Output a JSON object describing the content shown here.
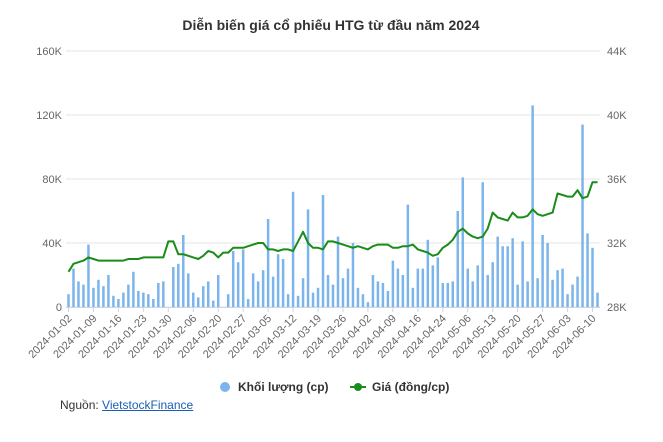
{
  "chart_data": {
    "type": "bar+line",
    "title": "Diễn biến giá cổ phiếu HTG từ đầu năm 2024",
    "colors": {
      "volume": "#7cb5ec",
      "price": "#1a8c1a",
      "grid": "#e6e6e6"
    },
    "y_left": {
      "ylim": [
        0,
        160000
      ],
      "ticks": [
        0,
        40000,
        80000,
        120000,
        160000
      ],
      "tick_labels": [
        "0",
        "40K",
        "80K",
        "120K",
        "160K"
      ]
    },
    "y_right": {
      "ylim": [
        28000,
        44000
      ],
      "ticks": [
        28000,
        32000,
        36000,
        40000,
        44000
      ],
      "tick_labels": [
        "28K",
        "32K",
        "36K",
        "40K",
        "44K"
      ]
    },
    "x_tick_labels": [
      "2024-01-02",
      "2024-01-09",
      "2024-01-16",
      "2024-01-23",
      "2024-01-30",
      "2024-02-06",
      "2024-02-20",
      "2024-02-27",
      "2024-03-05",
      "2024-03-12",
      "2024-03-19",
      "2024-03-26",
      "2024-04-02",
      "2024-04-09",
      "2024-04-16",
      "2024-04-24",
      "2024-05-06",
      "2024-05-13",
      "2024-05-20",
      "2024-05-27",
      "2024-06-03",
      "2024-06-10"
    ],
    "x_tick_label_every": 5,
    "legend_position": "bottom",
    "series": [
      {
        "name": "Khối lượng (cp)",
        "type": "bar",
        "values": [
          8000,
          24000,
          16000,
          14000,
          39000,
          12000,
          17000,
          13000,
          20000,
          7000,
          5000,
          9000,
          14000,
          22000,
          10000,
          9000,
          8000,
          5000,
          15000,
          16000,
          0,
          25000,
          27000,
          45000,
          21000,
          9000,
          6000,
          13000,
          16000,
          4000,
          20000,
          0,
          8000,
          35000,
          28000,
          36000,
          5000,
          21000,
          16000,
          23000,
          55000,
          19000,
          33000,
          30000,
          8000,
          72000,
          7000,
          18000,
          61000,
          9000,
          12000,
          70000,
          20000,
          14000,
          44000,
          18000,
          24000,
          40000,
          12000,
          8000,
          3000,
          20000,
          16000,
          15000,
          10000,
          29000,
          24000,
          20000,
          64000,
          12000,
          24000,
          24000,
          42000,
          26000,
          31000,
          15000,
          15000,
          16000,
          60000,
          81000,
          24000,
          16000,
          26000,
          78000,
          20000,
          28000,
          44000,
          38000,
          38000,
          43000,
          14000,
          41000,
          16000,
          126000,
          18000,
          45000,
          40000,
          17000,
          23000,
          24000,
          8000,
          14000,
          19000,
          114000,
          46000,
          37000,
          9000
        ]
      },
      {
        "name": "Giá (đồng/cp)",
        "type": "line",
        "values": [
          30200,
          30700,
          30800,
          30900,
          31100,
          31000,
          30900,
          30900,
          30900,
          30900,
          30900,
          30900,
          31000,
          31000,
          31000,
          31100,
          31100,
          31100,
          31100,
          31100,
          32100,
          32100,
          31300,
          31300,
          31200,
          31100,
          31000,
          31200,
          31500,
          31400,
          31100,
          31400,
          31400,
          31700,
          31700,
          31700,
          31800,
          31900,
          32000,
          32000,
          31600,
          31600,
          31500,
          31600,
          31600,
          31500,
          32100,
          32700,
          32000,
          31700,
          31700,
          31600,
          32100,
          32100,
          32000,
          31900,
          31800,
          31700,
          31800,
          31700,
          31600,
          31800,
          31900,
          31900,
          31900,
          31700,
          31700,
          31800,
          31800,
          31900,
          31600,
          31500,
          31400,
          31200,
          31300,
          31700,
          31900,
          32200,
          32700,
          32900,
          32600,
          32400,
          32300,
          32400,
          32900,
          33900,
          33600,
          33500,
          33400,
          33900,
          33600,
          33600,
          33700,
          34100,
          33800,
          33700,
          33800,
          33900,
          35100,
          35000,
          34900,
          34900,
          35300,
          34800,
          34900,
          35800,
          35800
        ]
      }
    ]
  },
  "source": {
    "label": "Nguồn: ",
    "link_text": "VietstockFinance"
  }
}
